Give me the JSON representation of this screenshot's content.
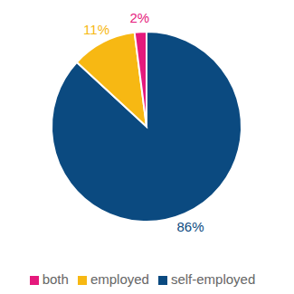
{
  "chart_data": {
    "type": "pie",
    "categories": [
      "self-employed",
      "employed",
      "both"
    ],
    "values": [
      86,
      11,
      2
    ],
    "value_labels": [
      "86%",
      "11%",
      "2%"
    ],
    "colors": [
      "#0b4a80",
      "#f7b813",
      "#e5197c"
    ],
    "data_labels": true,
    "legend": "bottom"
  }
}
